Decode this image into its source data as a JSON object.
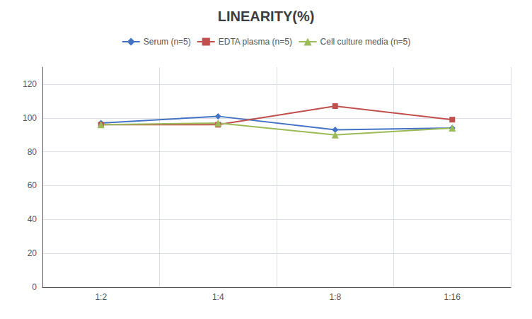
{
  "chart_data": {
    "type": "line",
    "title": "LINEARITY(%)",
    "categories": [
      "1:2",
      "1:4",
      "1:8",
      "1:16"
    ],
    "series": [
      {
        "name": "Serum (n=5)",
        "color": "#4472C4",
        "marker": "diamond",
        "values": [
          97,
          101,
          93,
          94
        ]
      },
      {
        "name": "EDTA plasma (n=5)",
        "color": "#C0504D",
        "marker": "square",
        "values": [
          96,
          96,
          107,
          99
        ]
      },
      {
        "name": "Cell culture media (n=5)",
        "color": "#9BBB59",
        "marker": "triangle",
        "values": [
          96,
          97,
          90,
          94
        ]
      }
    ],
    "ylim": [
      0,
      130
    ],
    "yticks": [
      0,
      20,
      40,
      60,
      80,
      100,
      120
    ],
    "grid": true,
    "legend": "top"
  }
}
